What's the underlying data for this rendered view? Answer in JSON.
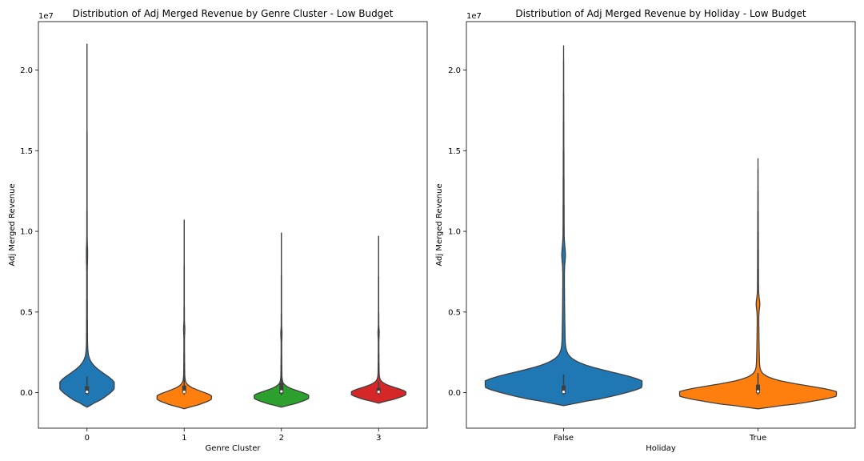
{
  "chart_data": [
    {
      "type": "violin",
      "title": "Distribution of Adj Merged Revenue by Genre Cluster - Low Budget",
      "xlabel": "Genre Cluster",
      "ylabel": "Adj Merged Revenue",
      "y_offset_label": "1e7",
      "ylim": [
        -2200000,
        23000000
      ],
      "yticks": [
        0,
        5000000,
        10000000,
        15000000,
        20000000
      ],
      "ytick_labels": [
        "0.0",
        "0.5",
        "1.0",
        "1.5",
        "2.0"
      ],
      "categories": [
        "0",
        "1",
        "2",
        "3"
      ],
      "series": [
        {
          "category": "0",
          "color": "#1f77b4",
          "min": -900000,
          "max": 21600000,
          "q1": -50000,
          "median": 50000,
          "q3": 250000
        },
        {
          "category": "1",
          "color": "#ff7f0e",
          "min": -1000000,
          "max": 10700000,
          "q1": -30000,
          "median": 50000,
          "q3": 300000
        },
        {
          "category": "2",
          "color": "#2ca02c",
          "min": -900000,
          "max": 9900000,
          "q1": -50000,
          "median": 80000,
          "q3": 450000
        },
        {
          "category": "3",
          "color": "#d62728",
          "min": -650000,
          "max": 9700000,
          "q1": -20000,
          "median": 50000,
          "q3": 150000
        }
      ]
    },
    {
      "type": "violin",
      "title": "Distribution of Adj Merged Revenue by Holiday - Low Budget",
      "xlabel": "Holiday",
      "ylabel": "Adj Merged Revenue",
      "y_offset_label": "1e7",
      "ylim": [
        -2200000,
        23000000
      ],
      "yticks": [
        0,
        5000000,
        10000000,
        15000000,
        20000000
      ],
      "ytick_labels": [
        "0.0",
        "0.5",
        "1.0",
        "1.5",
        "2.0"
      ],
      "categories": [
        "False",
        "True"
      ],
      "series": [
        {
          "category": "False",
          "color": "#1f77b4",
          "min": -800000,
          "max": 21500000,
          "q1": -50000,
          "median": 50000,
          "q3": 300000
        },
        {
          "category": "True",
          "color": "#ff7f0e",
          "min": -1000000,
          "max": 14500000,
          "q1": -30000,
          "median": 80000,
          "q3": 350000
        }
      ]
    }
  ]
}
